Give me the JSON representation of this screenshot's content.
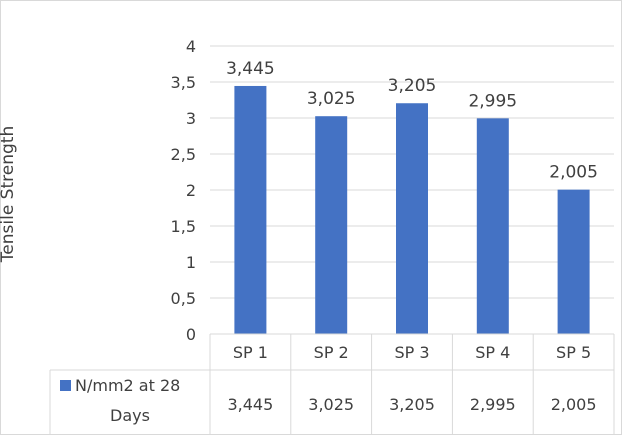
{
  "chart_data": {
    "type": "bar",
    "title": "",
    "ylabel": "Tensile Strength",
    "xlabel": "",
    "ylim": [
      0,
      4
    ],
    "yticks": [
      "0",
      "0,5",
      "1",
      "1,5",
      "2",
      "2,5",
      "3",
      "3,5",
      "4"
    ],
    "ytick_values": [
      0,
      0.5,
      1,
      1.5,
      2,
      2.5,
      3,
      3.5,
      4
    ],
    "categories": [
      "SP 1",
      "SP 2",
      "SP 3",
      "SP 4",
      "SP 5"
    ],
    "series": [
      {
        "name": "N/mm2 at 28 Days",
        "name_lines": [
          "N/mm2 at 28",
          "Days"
        ],
        "values": [
          3.445,
          3.025,
          3.205,
          2.995,
          2.005
        ],
        "value_labels": [
          "3,445",
          "3,025",
          "3,205",
          "2,995",
          "2,005"
        ],
        "color": "#4472C4"
      }
    ],
    "data_table": true,
    "grid": true,
    "legend": "data-table"
  }
}
